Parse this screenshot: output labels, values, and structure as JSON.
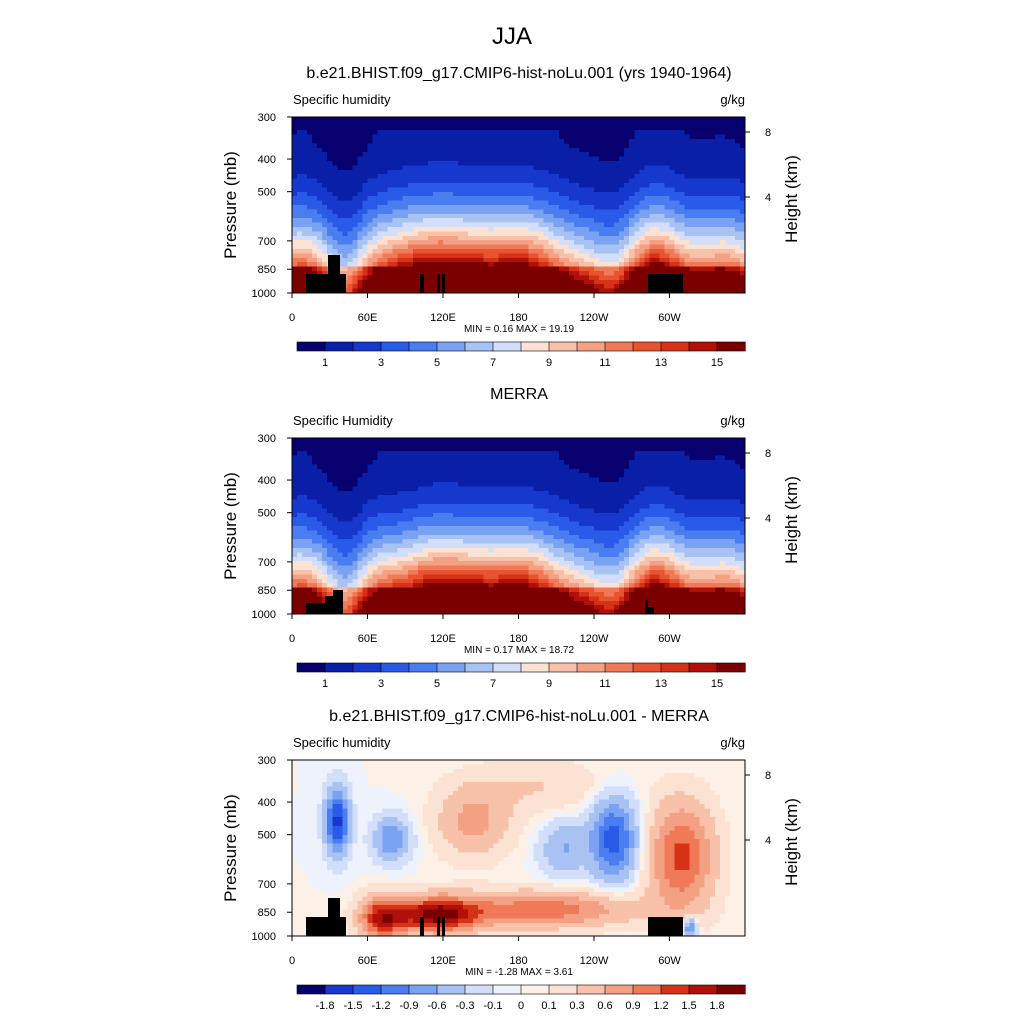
{
  "figure_title": "JJA",
  "chart_data": [
    {
      "type": "heatmap",
      "title": "b.e21.BHIST.f09_g17.CMIP6-hist-noLu.001 (yrs 1940-1964)",
      "left_label": "Specific humidity",
      "right_label": "g/kg",
      "xlabel": "",
      "ylabel": "Pressure (mb)",
      "y2label": "Height (km)",
      "x_ticks": [
        "0",
        "60E",
        "120E",
        "180",
        "120W",
        "60W"
      ],
      "y_ticks": [
        "300",
        "400",
        "500",
        "700",
        "850",
        "1000"
      ],
      "y2_ticks": [
        "8",
        "4"
      ],
      "ylim": [
        1000,
        300
      ],
      "stats": "MIN =   0.16  MAX =  19.19",
      "min": 0.16,
      "max": 19.19,
      "colorbar_labels": [
        "1",
        "3",
        "5",
        "7",
        "9",
        "11",
        "13",
        "15"
      ]
    },
    {
      "type": "heatmap",
      "title": "MERRA",
      "left_label": "Specific Humidity",
      "right_label": "g/kg",
      "xlabel": "",
      "ylabel": "Pressure (mb)",
      "y2label": "Height (km)",
      "x_ticks": [
        "0",
        "60E",
        "120E",
        "180",
        "120W",
        "60W"
      ],
      "y_ticks": [
        "300",
        "400",
        "500",
        "700",
        "850",
        "1000"
      ],
      "y2_ticks": [
        "8",
        "4"
      ],
      "ylim": [
        1000,
        300
      ],
      "stats": "MIN =   0.17  MAX =  18.72",
      "min": 0.17,
      "max": 18.72,
      "colorbar_labels": [
        "1",
        "3",
        "5",
        "7",
        "9",
        "11",
        "13",
        "15"
      ]
    },
    {
      "type": "heatmap",
      "title": "b.e21.BHIST.f09_g17.CMIP6-hist-noLu.001 - MERRA",
      "left_label": "Specific humidity",
      "right_label": "g/kg",
      "xlabel": "",
      "ylabel": "Pressure (mb)",
      "y2label": "Height (km)",
      "x_ticks": [
        "0",
        "60E",
        "120E",
        "180",
        "120W",
        "60W"
      ],
      "y_ticks": [
        "300",
        "400",
        "500",
        "700",
        "850",
        "1000"
      ],
      "y2_ticks": [
        "8",
        "4"
      ],
      "ylim": [
        1000,
        300
      ],
      "stats": "MIN =  -1.28  MAX =   3.61",
      "min": -1.28,
      "max": 3.61,
      "colorbar_labels": [
        "-1.8",
        "-1.5",
        "-1.2",
        "-0.9",
        "-0.6",
        "-0.3",
        "-0.1",
        "0",
        "0.1",
        "0.3",
        "0.6",
        "0.9",
        "1.2",
        "1.5",
        "1.8"
      ]
    }
  ],
  "colors": {
    "seq": [
      "#08006e",
      "#0a1fa8",
      "#1638cc",
      "#2a5ae8",
      "#4a7ef0",
      "#7aa2f2",
      "#a8c2f4",
      "#d2defa",
      "#fbe2d2",
      "#f8c2aa",
      "#f4a082",
      "#f07a58",
      "#e85430",
      "#d63218",
      "#b01008",
      "#7a0000"
    ],
    "div": [
      "#08006e",
      "#1638cc",
      "#2a5ae8",
      "#4a7ef0",
      "#7aa2f2",
      "#a8c2f4",
      "#d2defa",
      "#eef2fc",
      "#fdf0e6",
      "#fbe2d2",
      "#f8c2aa",
      "#f4a082",
      "#f07a58",
      "#d63218",
      "#b01008",
      "#7a0000"
    ]
  }
}
